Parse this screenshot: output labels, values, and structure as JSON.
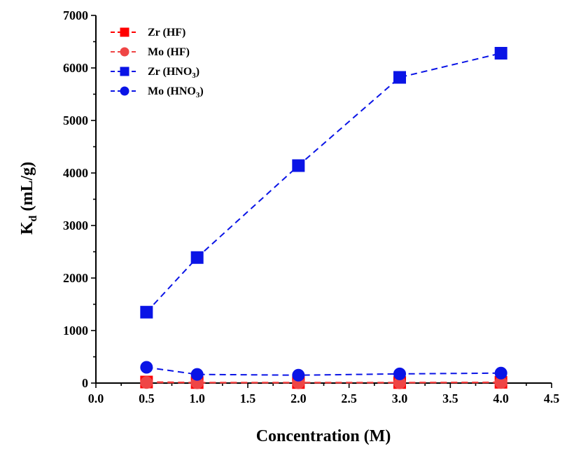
{
  "chart_data": {
    "type": "line",
    "title": "",
    "xlabel": "Concentration (M)",
    "ylabel": {
      "main": "K",
      "sub": "d",
      "rest": " (mL/g)"
    },
    "xlim": [
      0.0,
      4.5
    ],
    "ylim": [
      0,
      7000
    ],
    "xticks": [
      0.0,
      0.5,
      1.0,
      1.5,
      2.0,
      2.5,
      3.0,
      3.5,
      4.0,
      4.5
    ],
    "xtick_labels": [
      "0.0",
      "0.5",
      "1.0",
      "1.5",
      "2.0",
      "2.5",
      "3.0",
      "3.5",
      "4.0",
      "4.5"
    ],
    "yticks": [
      0,
      1000,
      2000,
      3000,
      4000,
      5000,
      6000,
      7000
    ],
    "ytick_labels": [
      "0",
      "1000",
      "2000",
      "3000",
      "4000",
      "5000",
      "6000",
      "7000"
    ],
    "grid": false,
    "legend_position": "top-left",
    "x": [
      0.5,
      1.0,
      2.0,
      3.0,
      4.0
    ],
    "series": [
      {
        "name": "Zr (HF)",
        "name_main": "Zr (HF)",
        "name_sub": "",
        "name_tail": "",
        "marker": "square",
        "color": "#ff0000",
        "values": [
          20,
          10,
          10,
          10,
          15
        ]
      },
      {
        "name": "Mo (HF)",
        "name_main": "Mo (HF)",
        "name_sub": "",
        "name_tail": "",
        "marker": "circle",
        "color": "#ef4545",
        "values": [
          10,
          5,
          5,
          5,
          10
        ]
      },
      {
        "name": "Zr (HNO3)",
        "name_main": "Zr (HNO",
        "name_sub": "3",
        "name_tail": ")",
        "marker": "square",
        "color": "#0a14e6",
        "values": [
          1350,
          2390,
          4140,
          5820,
          6280
        ]
      },
      {
        "name": "Mo (HNO3)",
        "name_main": "Mo (HNO",
        "name_sub": "3",
        "name_tail": ")",
        "marker": "circle",
        "color": "#0a14e6",
        "values": [
          300,
          165,
          150,
          175,
          190
        ]
      }
    ]
  }
}
